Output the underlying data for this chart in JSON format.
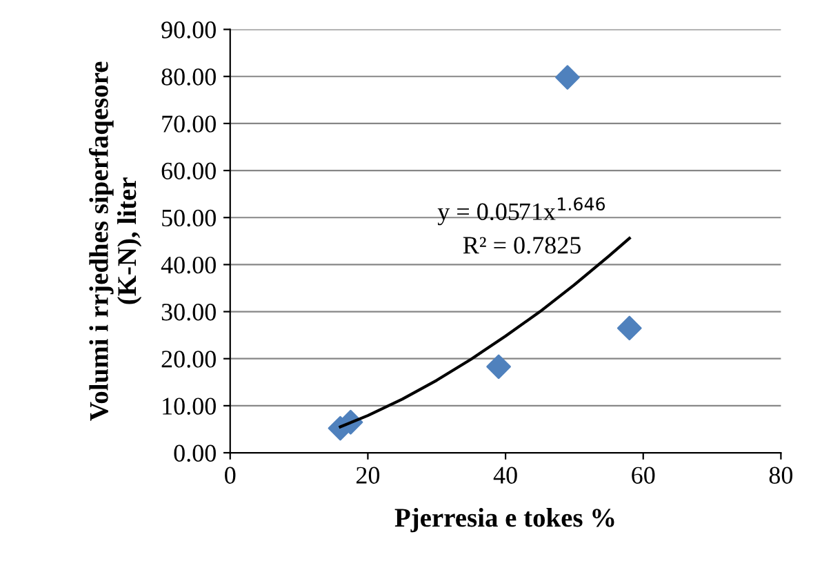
{
  "chart_data": {
    "type": "scatter",
    "xlabel": "Pjerresia e tokes %",
    "ylabel": "Volumi i rrjedhes siperfaqesore\n(K-N), liter",
    "series": [
      {
        "color": "#4f81bd",
        "marker": "diamond",
        "x": [
          16,
          17.5,
          39,
          49,
          58
        ],
        "values": [
          5.2,
          6.5,
          18.3,
          79.8,
          26.5
        ]
      },
      {
        "type": "line",
        "color": "#000000",
        "marker": "none",
        "x": [
          16,
          20,
          25,
          30,
          35,
          40,
          45,
          50,
          55,
          58
        ],
        "values": [
          5.5,
          7.9,
          11.4,
          15.4,
          19.9,
          24.8,
          30.0,
          35.7,
          41.8,
          45.6
        ]
      }
    ],
    "annotations": [
      "y = 0.0571x$^{1.646}$",
      "R² = 0.7825"
    ],
    "xlim": [
      0,
      80
    ],
    "xticks": [
      0,
      20,
      40,
      60,
      80
    ],
    "ylim": [
      0,
      90
    ],
    "yticks": [
      {
        "value": 0,
        "label": "0.00"
      },
      {
        "value": 10,
        "label": "10.00"
      },
      {
        "value": 20,
        "label": "20.00"
      },
      {
        "value": 30,
        "label": "30.00"
      },
      {
        "value": 40,
        "label": "40.00"
      },
      {
        "value": 50,
        "label": "50.00"
      },
      {
        "value": 60,
        "label": "60.00"
      },
      {
        "value": 70,
        "label": "70.00"
      },
      {
        "value": 80,
        "label": "80.00"
      },
      {
        "value": 90,
        "label": "90.00"
      }
    ],
    "grid": "y"
  }
}
